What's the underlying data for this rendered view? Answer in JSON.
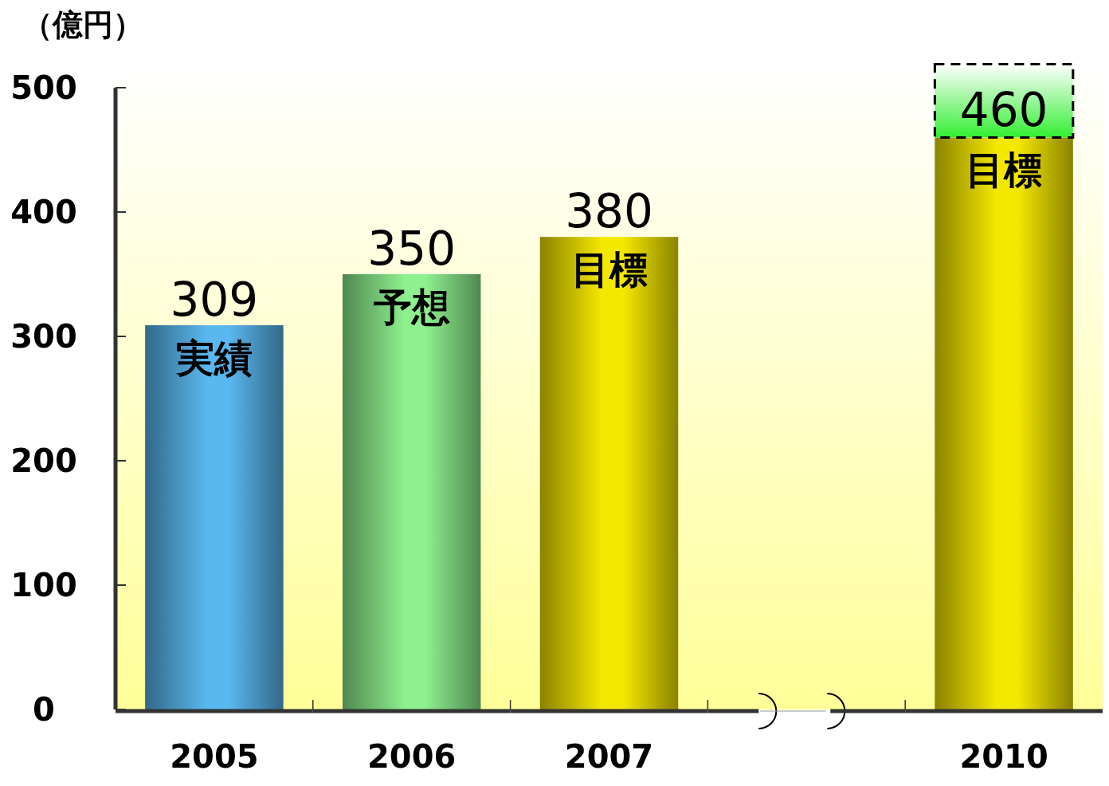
{
  "chart_data": {
    "type": "bar",
    "ylabel": "（億円）",
    "categories": [
      "2005",
      "2006",
      "2007",
      null,
      "2010"
    ],
    "values": [
      309,
      350,
      380,
      null,
      460
    ],
    "colors": [
      "#5ab8f0",
      "#8ef08e",
      "#f5e800",
      null,
      "#f5e800"
    ],
    "ylim": [
      0,
      500
    ],
    "yticks": [
      0,
      100,
      200,
      300,
      400,
      500
    ],
    "data_labels": true,
    "annotations": [
      {
        "text": "実績",
        "x": "2005",
        "y": 309
      },
      {
        "text": "予想",
        "x": "2006",
        "y": 350
      },
      {
        "text": "目標",
        "x": "2007",
        "y": 380
      },
      {
        "text": "目標",
        "x": "2010",
        "y": 460
      }
    ]
  }
}
